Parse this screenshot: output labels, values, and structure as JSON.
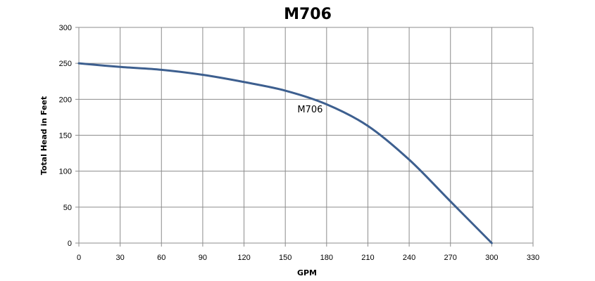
{
  "chart_data": {
    "type": "line",
    "title": "M706",
    "xlabel": "GPM",
    "ylabel": "Total Head in Feet",
    "xlim": [
      0,
      330
    ],
    "ylim": [
      0,
      300
    ],
    "x_ticks": [
      0,
      30,
      60,
      90,
      120,
      150,
      180,
      210,
      240,
      270,
      300,
      330
    ],
    "y_ticks": [
      0,
      50,
      100,
      150,
      200,
      250,
      300
    ],
    "grid": true,
    "series": [
      {
        "name": "M706",
        "color": "#3d5f8f",
        "points": [
          [
            0,
            250
          ],
          [
            30,
            245
          ],
          [
            60,
            241
          ],
          [
            90,
            234
          ],
          [
            120,
            224
          ],
          [
            150,
            212
          ],
          [
            180,
            193
          ],
          [
            210,
            163
          ],
          [
            240,
            116
          ],
          [
            270,
            58
          ],
          [
            300,
            0
          ]
        ]
      }
    ]
  }
}
